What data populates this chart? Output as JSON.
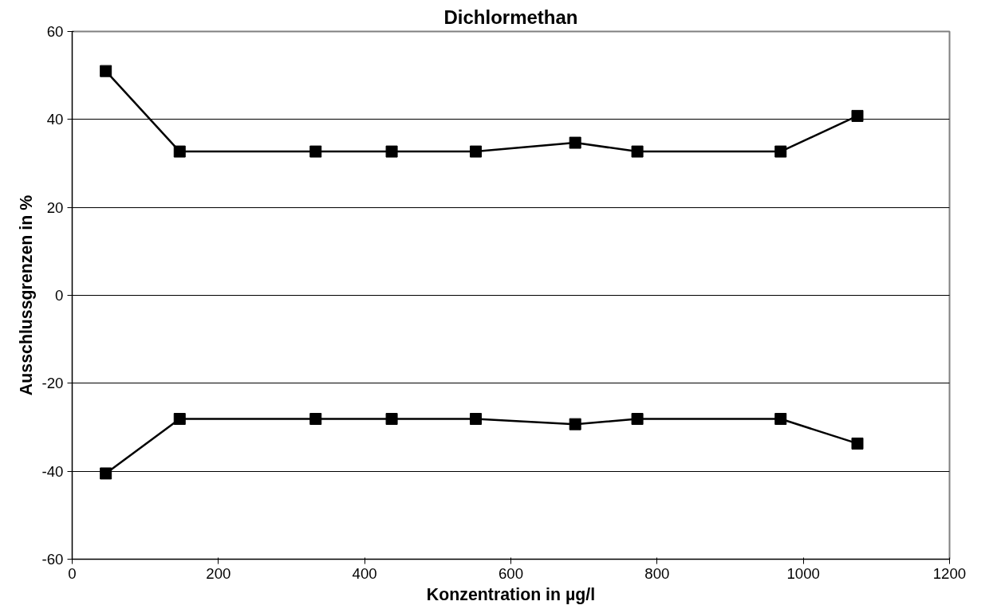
{
  "chart_data": {
    "type": "line",
    "title": "Dichlormethan",
    "xlabel": "Konzentration in µg/l",
    "ylabel": "Ausschlussgrenzen in %",
    "x": [
      46,
      147,
      333,
      437,
      552,
      688,
      773,
      969,
      1074
    ],
    "series": [
      {
        "color": "#000000",
        "values": [
          51,
          32.7,
          32.7,
          32.7,
          32.7,
          34.7,
          32.7,
          32.7,
          40.8
        ]
      },
      {
        "color": "#000000",
        "values": [
          -40.5,
          -28.1,
          -28.1,
          -28.1,
          -28.1,
          -29.3,
          -28.1,
          -28.1,
          -33.7
        ]
      }
    ],
    "xlim": [
      0,
      1200
    ],
    "xticks": [
      0,
      200,
      400,
      600,
      800,
      1000,
      1200
    ],
    "ylim": [
      -60,
      60
    ],
    "yticks": [
      -60,
      -40,
      -20,
      0,
      20,
      40,
      60
    ],
    "grid": "y",
    "marker": "square",
    "line_style": "solid"
  }
}
